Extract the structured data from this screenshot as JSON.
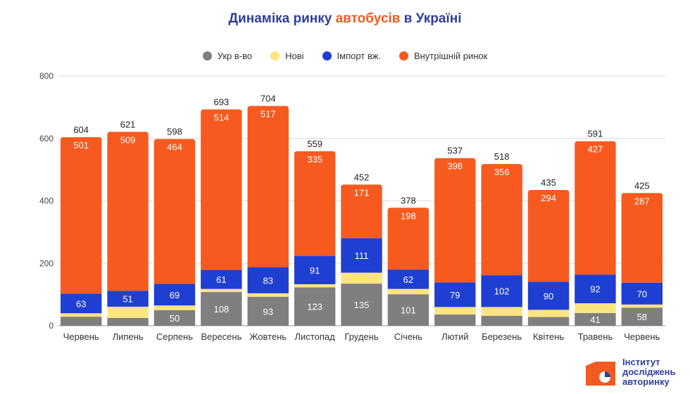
{
  "title": {
    "prefix": "Динаміка ринку ",
    "accent": "автобусів",
    "suffix": " в Україні"
  },
  "logo": {
    "line1": "Інститут",
    "line2": "досліджень",
    "line3": "авторинку"
  },
  "colors": {
    "ukr": "#7f7f7f",
    "new": "#ffe57f",
    "import": "#1f3fd3",
    "domestic": "#f75a1f",
    "grid": "#dcdcdc"
  },
  "chart_data": {
    "type": "bar",
    "stacked": true,
    "title": "Динаміка ринку автобусів в Україні",
    "categories": [
      "Червень",
      "Липень",
      "Серпень",
      "Вересень",
      "Жовтень",
      "Листопад",
      "Грудень",
      "Січень",
      "Лютий",
      "Березень",
      "Квітень",
      "Травень",
      "Червень"
    ],
    "series": [
      {
        "name": "Укр в-во",
        "values": [
          29,
          25,
          50,
          108,
          93,
          123,
          135,
          101,
          36,
          32,
          28,
          41,
          58
        ],
        "labels": [
          null,
          null,
          "50",
          "108",
          "93",
          "123",
          "135",
          "101",
          null,
          null,
          null,
          "41",
          "58"
        ]
      },
      {
        "name": "Нові",
        "values": [
          11,
          36,
          15,
          10,
          11,
          10,
          35,
          17,
          24,
          28,
          23,
          31,
          10
        ],
        "labels": [
          null,
          null,
          null,
          null,
          null,
          null,
          null,
          null,
          null,
          null,
          null,
          null,
          null
        ]
      },
      {
        "name": "Імпорт вж.",
        "values": [
          63,
          51,
          69,
          61,
          83,
          91,
          111,
          62,
          79,
          102,
          90,
          92,
          70
        ],
        "labels": [
          "63",
          "51",
          "69",
          "61",
          "83",
          "91",
          "111",
          "62",
          "79",
          "102",
          "90",
          "92",
          "70"
        ]
      },
      {
        "name": "Внутрішній ринок",
        "values": [
          501,
          509,
          464,
          514,
          517,
          335,
          171,
          198,
          398,
          356,
          294,
          427,
          287
        ],
        "labels": [
          "501",
          "509",
          "464",
          "514",
          "517",
          "335",
          "171",
          "198",
          "398",
          "356",
          "294",
          "427",
          "287"
        ]
      }
    ],
    "totals": [
      604,
      621,
      598,
      693,
      704,
      559,
      452,
      378,
      537,
      518,
      435,
      591,
      425
    ],
    "ylim": [
      0,
      800
    ],
    "yticks": [
      0,
      200,
      400,
      600,
      800
    ],
    "grid": true,
    "legend_position": "top"
  }
}
